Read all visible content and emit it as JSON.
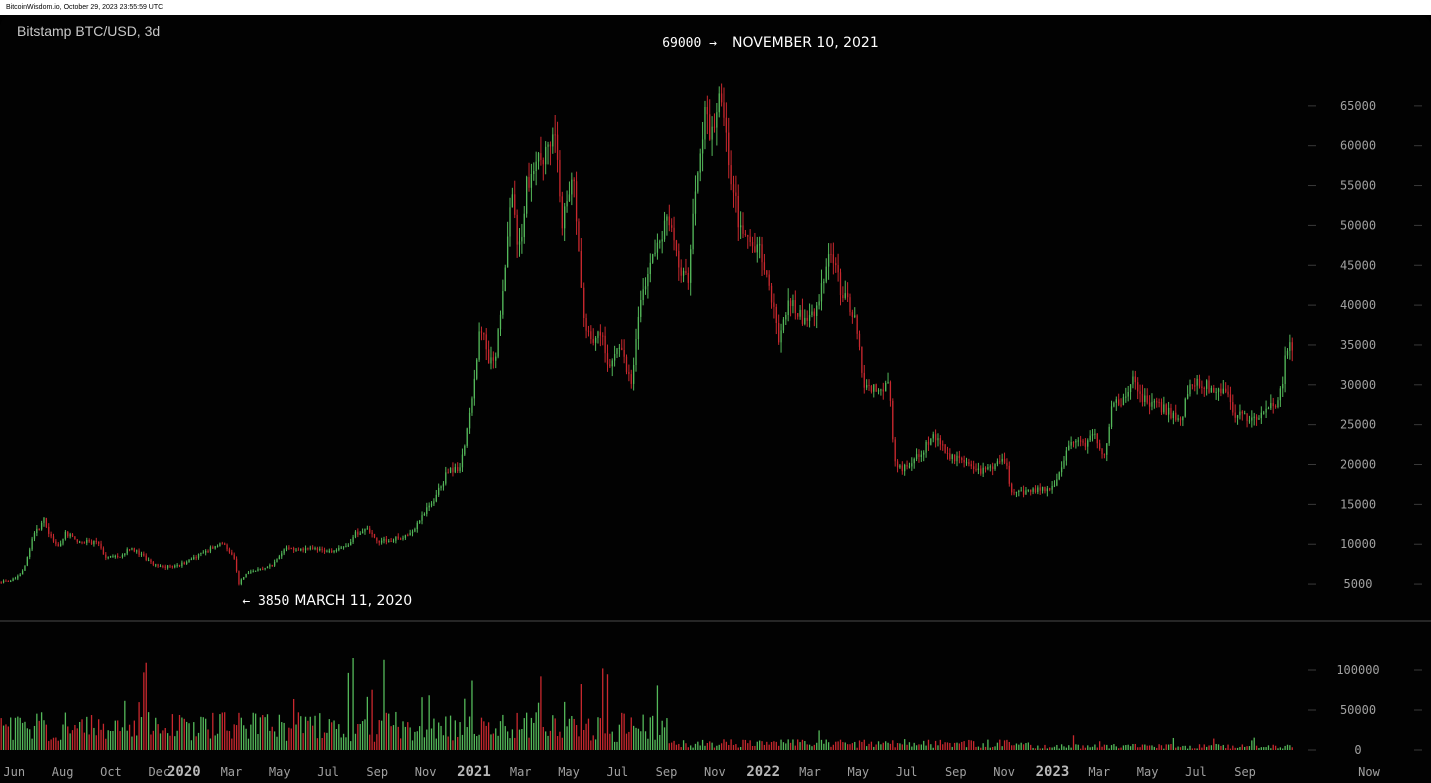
{
  "header": {
    "watermark": "BitcoinWisdom.io, October 29, 2023 23:55:59 UTC"
  },
  "colors": {
    "up": "#54b85a",
    "down": "#c8282e",
    "axis_text": "#a0a0a0",
    "divider": "#4a4a4a",
    "background": "#020202"
  },
  "chart_data": {
    "type": "candlestick",
    "title": "Bitstamp BTC/USD, 3d",
    "interval": "3d",
    "price_axis": {
      "ticks": [
        5000,
        10000,
        15000,
        20000,
        25000,
        30000,
        35000,
        40000,
        45000,
        50000,
        55000,
        60000,
        65000
      ],
      "range": [
        2500,
        70500
      ]
    },
    "volume_axis": {
      "ticks": [
        0,
        50000,
        100000
      ],
      "range": [
        0,
        135000
      ]
    },
    "x_axis": {
      "range": [
        "2019-05-14",
        "2023-12-02"
      ],
      "ticks": [
        {
          "label": "Jun",
          "date": "2019-06-01",
          "year": false
        },
        {
          "label": "Aug",
          "date": "2019-08-01",
          "year": false
        },
        {
          "label": "Oct",
          "date": "2019-10-01",
          "year": false
        },
        {
          "label": "Dec",
          "date": "2019-12-01",
          "year": false
        },
        {
          "label": "2020",
          "date": "2020-01-01",
          "year": true
        },
        {
          "label": "Mar",
          "date": "2020-03-01",
          "year": false
        },
        {
          "label": "May",
          "date": "2020-05-01",
          "year": false
        },
        {
          "label": "Jul",
          "date": "2020-07-01",
          "year": false
        },
        {
          "label": "Sep",
          "date": "2020-09-01",
          "year": false
        },
        {
          "label": "Nov",
          "date": "2020-11-01",
          "year": false
        },
        {
          "label": "2021",
          "date": "2021-01-01",
          "year": true
        },
        {
          "label": "Mar",
          "date": "2021-03-01",
          "year": false
        },
        {
          "label": "May",
          "date": "2021-05-01",
          "year": false
        },
        {
          "label": "Jul",
          "date": "2021-07-01",
          "year": false
        },
        {
          "label": "Sep",
          "date": "2021-09-01",
          "year": false
        },
        {
          "label": "Nov",
          "date": "2021-11-01",
          "year": false
        },
        {
          "label": "2022",
          "date": "2022-01-01",
          "year": true
        },
        {
          "label": "Mar",
          "date": "2022-03-01",
          "year": false
        },
        {
          "label": "May",
          "date": "2022-05-01",
          "year": false
        },
        {
          "label": "Jul",
          "date": "2022-07-01",
          "year": false
        },
        {
          "label": "Sep",
          "date": "2022-09-01",
          "year": false
        },
        {
          "label": "Nov",
          "date": "2022-11-01",
          "year": false
        },
        {
          "label": "2023",
          "date": "2023-01-01",
          "year": true
        },
        {
          "label": "Mar",
          "date": "2023-03-01",
          "year": false
        },
        {
          "label": "May",
          "date": "2023-05-01",
          "year": false
        },
        {
          "label": "Jul",
          "date": "2023-07-01",
          "year": false
        },
        {
          "label": "Sep",
          "date": "2023-09-01",
          "year": false
        },
        {
          "label": "Now",
          "date": "2023-11-30",
          "year": false
        }
      ]
    },
    "price_path": [
      [
        "2019-05-14",
        5300
      ],
      [
        "2019-05-25",
        5400
      ],
      [
        "2019-06-03",
        5600
      ],
      [
        "2019-06-12",
        6500
      ],
      [
        "2019-06-20",
        8500
      ],
      [
        "2019-06-26",
        11200
      ],
      [
        "2019-07-02",
        11800
      ],
      [
        "2019-07-10",
        13000
      ],
      [
        "2019-07-18",
        11000
      ],
      [
        "2019-07-28",
        9700
      ],
      [
        "2019-08-06",
        11500
      ],
      [
        "2019-08-18",
        10500
      ],
      [
        "2019-09-01",
        10300
      ],
      [
        "2019-09-15",
        10200
      ],
      [
        "2019-09-25",
        8500
      ],
      [
        "2019-10-10",
        8300
      ],
      [
        "2019-10-26",
        9500
      ],
      [
        "2019-11-10",
        8700
      ],
      [
        "2019-11-25",
        7300
      ],
      [
        "2019-12-10",
        7200
      ],
      [
        "2019-12-25",
        7300
      ],
      [
        "2020-01-10",
        8000
      ],
      [
        "2020-01-25",
        8800
      ],
      [
        "2020-02-10",
        9800
      ],
      [
        "2020-02-20",
        10000
      ],
      [
        "2020-03-05",
        8700
      ],
      [
        "2020-03-12",
        5000
      ],
      [
        "2020-03-20",
        6300
      ],
      [
        "2020-04-05",
        6800
      ],
      [
        "2020-04-25",
        7500
      ],
      [
        "2020-05-08",
        9500
      ],
      [
        "2020-05-25",
        9200
      ],
      [
        "2020-06-15",
        9400
      ],
      [
        "2020-07-10",
        9200
      ],
      [
        "2020-07-25",
        9600
      ],
      [
        "2020-08-05",
        11300
      ],
      [
        "2020-08-20",
        11800
      ],
      [
        "2020-09-05",
        10300
      ],
      [
        "2020-09-25",
        10700
      ],
      [
        "2020-10-15",
        11400
      ],
      [
        "2020-10-30",
        13500
      ],
      [
        "2020-11-15",
        16000
      ],
      [
        "2020-11-30",
        19000
      ],
      [
        "2020-12-15",
        19500
      ],
      [
        "2020-12-25",
        24000
      ],
      [
        "2021-01-05",
        33000
      ],
      [
        "2021-01-10",
        38000
      ],
      [
        "2021-01-20",
        33000
      ],
      [
        "2021-01-30",
        34000
      ],
      [
        "2021-02-10",
        44000
      ],
      [
        "2021-02-20",
        55000
      ],
      [
        "2021-02-28",
        46000
      ],
      [
        "2021-03-10",
        55000
      ],
      [
        "2021-03-20",
        58000
      ],
      [
        "2021-03-31",
        58500
      ],
      [
        "2021-04-14",
        63000
      ],
      [
        "2021-04-24",
        50000
      ],
      [
        "2021-05-08",
        58000
      ],
      [
        "2021-05-15",
        47000
      ],
      [
        "2021-05-20",
        38000
      ],
      [
        "2021-05-30",
        35000
      ],
      [
        "2021-06-10",
        37000
      ],
      [
        "2021-06-22",
        32000
      ],
      [
        "2021-07-05",
        34500
      ],
      [
        "2021-07-20",
        30000
      ],
      [
        "2021-07-30",
        40000
      ],
      [
        "2021-08-15",
        46000
      ],
      [
        "2021-09-05",
        51000
      ],
      [
        "2021-09-20",
        43000
      ],
      [
        "2021-09-30",
        43500
      ],
      [
        "2021-10-10",
        55000
      ],
      [
        "2021-10-20",
        64000
      ],
      [
        "2021-10-30",
        61000
      ],
      [
        "2021-11-10",
        67000
      ],
      [
        "2021-11-20",
        58000
      ],
      [
        "2021-12-05",
        49000
      ],
      [
        "2021-12-20",
        48000
      ],
      [
        "2021-12-30",
        47000
      ],
      [
        "2022-01-10",
        42000
      ],
      [
        "2022-01-22",
        36000
      ],
      [
        "2022-02-05",
        41000
      ],
      [
        "2022-02-25",
        38000
      ],
      [
        "2022-03-10",
        39000
      ],
      [
        "2022-03-28",
        47000
      ],
      [
        "2022-04-10",
        42000
      ],
      [
        "2022-04-28",
        39000
      ],
      [
        "2022-05-10",
        30000
      ],
      [
        "2022-05-25",
        29500
      ],
      [
        "2022-06-10",
        30000
      ],
      [
        "2022-06-18",
        20000
      ],
      [
        "2022-06-30",
        19500
      ],
      [
        "2022-07-15",
        21000
      ],
      [
        "2022-08-10",
        23800
      ],
      [
        "2022-08-25",
        21000
      ],
      [
        "2022-09-10",
        20500
      ],
      [
        "2022-09-25",
        19000
      ],
      [
        "2022-10-10",
        19200
      ],
      [
        "2022-10-25",
        20000
      ],
      [
        "2022-11-05",
        20800
      ],
      [
        "2022-11-10",
        16700
      ],
      [
        "2022-11-25",
        16500
      ],
      [
        "2022-12-15",
        17000
      ],
      [
        "2022-12-30",
        16600
      ],
      [
        "2023-01-12",
        19000
      ],
      [
        "2023-01-25",
        23000
      ],
      [
        "2023-02-10",
        22500
      ],
      [
        "2023-02-25",
        23500
      ],
      [
        "2023-03-10",
        20500
      ],
      [
        "2023-03-18",
        27000
      ],
      [
        "2023-03-31",
        28200
      ],
      [
        "2023-04-14",
        30400
      ],
      [
        "2023-04-25",
        28500
      ],
      [
        "2023-05-10",
        27500
      ],
      [
        "2023-05-25",
        26800
      ],
      [
        "2023-06-14",
        25500
      ],
      [
        "2023-06-24",
        30500
      ],
      [
        "2023-07-10",
        30300
      ],
      [
        "2023-07-25",
        29300
      ],
      [
        "2023-08-10",
        29400
      ],
      [
        "2023-08-18",
        26000
      ],
      [
        "2023-09-10",
        26000
      ],
      [
        "2023-09-25",
        26300
      ],
      [
        "2023-10-10",
        27500
      ],
      [
        "2023-10-16",
        28500
      ],
      [
        "2023-10-20",
        30000
      ],
      [
        "2023-10-24",
        34000
      ],
      [
        "2023-10-29",
        34500
      ]
    ],
    "annotations": [
      {
        "price_label": "69000",
        "arrow": "→",
        "text": "NOVEMBER 10, 2021",
        "date": "2021-11-10",
        "price": 69000
      },
      {
        "price_label": "3850",
        "arrow": "←",
        "text": "MARCH 11, 2020",
        "date": "2020-03-11",
        "price": 3850
      }
    ]
  }
}
